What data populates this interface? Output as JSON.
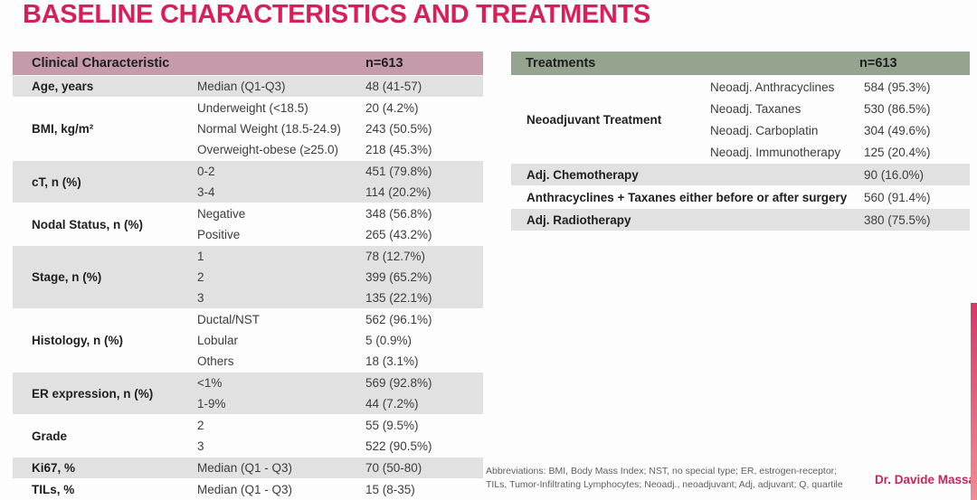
{
  "title": "BASELINE CHARACTERISTICS AND TREATMENTS",
  "colors": {
    "title": "#d81e5b",
    "left_header_bg": "#c59aab",
    "right_header_bg": "#95a48f",
    "row_shaded_bg": "#e1e1e1",
    "header_text": "#1f1f1f",
    "label_text": "#1f1f1f",
    "value_text": "#3d3d3d",
    "footer_text": "#5f5f5f",
    "credit_text": "#c2285a",
    "accent_bar_top": "#d23a67",
    "accent_bar_bottom": "#ef8f94"
  },
  "left_table": {
    "header": {
      "label": "Clinical Characteristic",
      "n": "n=613"
    },
    "groups": [
      {
        "label": "Age, years",
        "shaded": true,
        "rows": [
          [
            "Median (Q1-Q3)",
            "48 (41-57)"
          ]
        ]
      },
      {
        "label": "BMI, kg/m²",
        "shaded": false,
        "rows": [
          [
            "Underweight (<18.5)",
            "20 (4.2%)"
          ],
          [
            "Normal Weight (18.5-24.9)",
            "243 (50.5%)"
          ],
          [
            "Overweight-obese (≥25.0)",
            "218 (45.3%)"
          ]
        ]
      },
      {
        "label": "cT, n (%)",
        "shaded": true,
        "rows": [
          [
            "0-2",
            "451 (79.8%)"
          ],
          [
            "3-4",
            "114 (20.2%)"
          ]
        ]
      },
      {
        "label": "Nodal Status, n (%)",
        "shaded": false,
        "rows": [
          [
            "Negative",
            "348 (56.8%)"
          ],
          [
            "Positive",
            "265 (43.2%)"
          ]
        ]
      },
      {
        "label": "Stage, n (%)",
        "shaded": true,
        "rows": [
          [
            "1",
            "78 (12.7%)"
          ],
          [
            "2",
            "399 (65.2%)"
          ],
          [
            "3",
            "135 (22.1%)"
          ]
        ]
      },
      {
        "label": "Histology, n (%)",
        "shaded": false,
        "rows": [
          [
            "Ductal/NST",
            "562 (96.1%)"
          ],
          [
            "Lobular",
            "5 (0.9%)"
          ],
          [
            "Others",
            "18 (3.1%)"
          ]
        ]
      },
      {
        "label": "ER expression, n (%)",
        "shaded": true,
        "rows": [
          [
            "<1%",
            "569 (92.8%)"
          ],
          [
            "1-9%",
            "44 (7.2%)"
          ]
        ]
      },
      {
        "label": "Grade",
        "shaded": false,
        "rows": [
          [
            "2",
            "55 (9.5%)"
          ],
          [
            "3",
            "522 (90.5%)"
          ]
        ]
      },
      {
        "label": "Ki67, %",
        "shaded": true,
        "rows": [
          [
            "Median (Q1 - Q3)",
            "70 (50-80)"
          ]
        ]
      },
      {
        "label": "TILs, %",
        "shaded": false,
        "rows": [
          [
            "Median (Q1 - Q3)",
            "15 (8-35)"
          ]
        ]
      }
    ]
  },
  "right_table": {
    "header": {
      "label": "Treatments",
      "n": "n=613"
    },
    "groups": [
      {
        "label": "Neoadjuvant Treatment",
        "shaded": false,
        "rows": [
          [
            "Neoadj. Anthracyclines",
            "584 (95.3%)"
          ],
          [
            "Neoadj. Taxanes",
            "530 (86.5%)"
          ],
          [
            "Neoadj. Carboplatin",
            "304 (49.6%)"
          ],
          [
            "Neoadj. Immunotherapy",
            "125 (20.4%)"
          ]
        ]
      },
      {
        "label": "Adj. Chemotherapy",
        "shaded": true,
        "wide": true,
        "value": "90 (16.0%)"
      },
      {
        "label": "Anthracyclines + Taxanes either before or after surgery",
        "shaded": false,
        "wide": true,
        "value": "560 (91.4%)"
      },
      {
        "label": "Adj. Radiotherapy",
        "shaded": true,
        "wide": true,
        "value": "380 (75.5%)"
      }
    ]
  },
  "footer": {
    "abbreviations_line1": "Abbreviations: BMI, Body Mass Index; NST, no special type; ER, estrogen-receptor;",
    "abbreviations_line2": "TILs, Tumor-Infiltrating Lymphocytes; Neoadj., neoadjuvant; Adj, adjuvant; Q, quartile",
    "credit": "Dr. Davide Massa"
  }
}
